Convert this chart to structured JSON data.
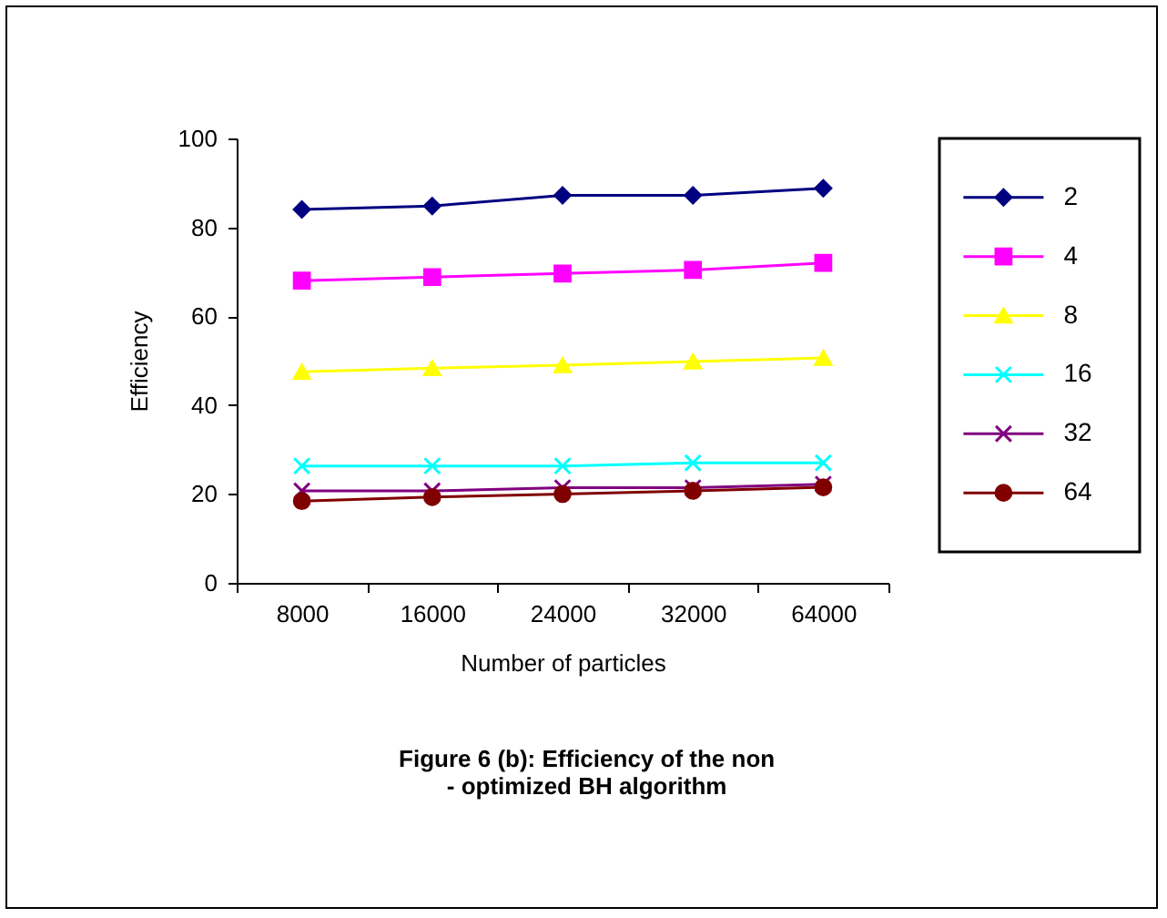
{
  "chart_data": {
    "type": "line",
    "title": "Figure  6 (b): Efficiency of the non  - optimized BH algorithm",
    "xlabel": "Number of particles",
    "ylabel": "Efficiency",
    "categories": [
      "8000",
      "16000",
      "24000",
      "32000",
      "64000"
    ],
    "ylim": [
      0,
      100
    ],
    "yticks": [
      0,
      20,
      40,
      60,
      80,
      100
    ],
    "grid": false,
    "legend": "right",
    "line_style": "solid",
    "series": [
      {
        "name": "2",
        "color": "#000080",
        "marker": "diamond",
        "values": [
          84,
          84.8,
          87.2,
          87.2,
          88.8
        ]
      },
      {
        "name": "4",
        "color": "#ff00ff",
        "marker": "square",
        "values": [
          68,
          68.8,
          69.6,
          70.4,
          72
        ]
      },
      {
        "name": "8",
        "color": "#ffff00",
        "marker": "triangle",
        "values": [
          47.5,
          48.3,
          49,
          49.8,
          50.6
        ]
      },
      {
        "name": "16",
        "color": "#00ffff",
        "marker": "cross",
        "values": [
          26.3,
          26.3,
          26.3,
          27,
          27
        ]
      },
      {
        "name": "32",
        "color": "#800080",
        "marker": "cross",
        "values": [
          20.7,
          20.7,
          21.4,
          21.4,
          22.2
        ]
      },
      {
        "name": "64",
        "color": "#800000",
        "marker": "circle",
        "values": [
          18.4,
          19.3,
          20,
          20.7,
          21.5
        ]
      }
    ]
  }
}
